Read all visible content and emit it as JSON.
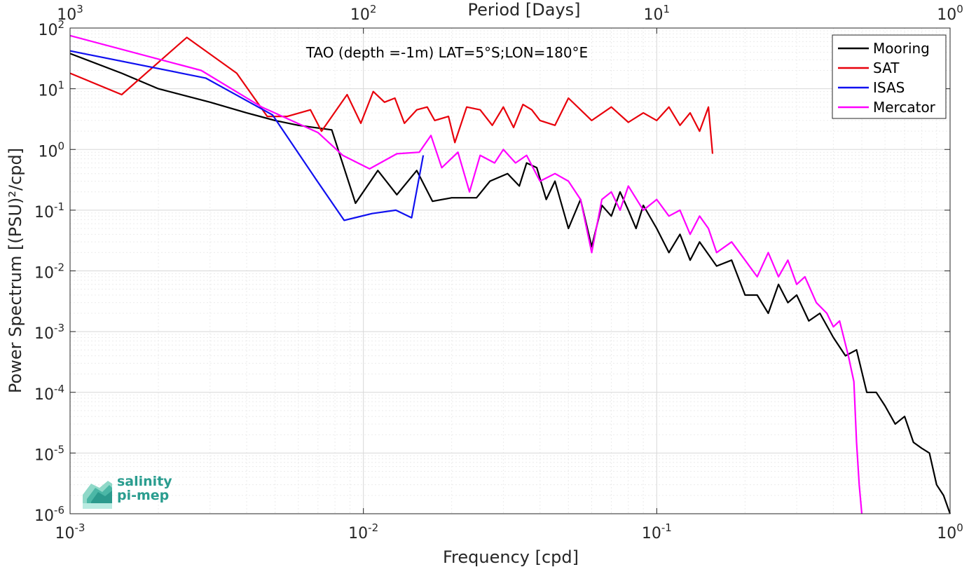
{
  "chart_data": {
    "type": "line",
    "title": "TAO (depth =-1m) LAT=5°S;LON=180°E",
    "xlabel": "Frequency [cpd]",
    "ylabel": "Power Spectrum [(PSU)²/cpd]",
    "top_xlabel": "Period [Days]",
    "xscale": "log",
    "yscale": "log",
    "xlim": [
      0.001,
      1
    ],
    "ylim": [
      1e-06,
      100
    ],
    "grid": true,
    "legend_placement": "top-right",
    "x_ticks": [
      {
        "value": 0.001,
        "base": "10",
        "exp": "-3"
      },
      {
        "value": 0.01,
        "base": "10",
        "exp": "-2"
      },
      {
        "value": 0.1,
        "base": "10",
        "exp": "-1"
      },
      {
        "value": 1,
        "base": "10",
        "exp": "0"
      }
    ],
    "top_ticks": [
      {
        "value": 0.001,
        "base": "10",
        "exp": "3"
      },
      {
        "value": 0.01,
        "base": "10",
        "exp": "2"
      },
      {
        "value": 0.1,
        "base": "10",
        "exp": "1"
      },
      {
        "value": 1,
        "base": "10",
        "exp": "0"
      }
    ],
    "y_ticks": [
      {
        "value": 100,
        "base": "10",
        "exp": "2"
      },
      {
        "value": 10,
        "base": "10",
        "exp": "1"
      },
      {
        "value": 1,
        "base": "10",
        "exp": "0"
      },
      {
        "value": 0.1,
        "base": "10",
        "exp": "-1"
      },
      {
        "value": 0.01,
        "base": "10",
        "exp": "-2"
      },
      {
        "value": 0.001,
        "base": "10",
        "exp": "-3"
      },
      {
        "value": 0.0001,
        "base": "10",
        "exp": "-4"
      },
      {
        "value": 1e-05,
        "base": "10",
        "exp": "-5"
      },
      {
        "value": 1e-06,
        "base": "10",
        "exp": "-6"
      }
    ],
    "series": [
      {
        "name": "Mooring",
        "color": "#000000",
        "points": [
          [
            0.001,
            38
          ],
          [
            0.0015,
            18
          ],
          [
            0.002,
            10
          ],
          [
            0.003,
            6
          ],
          [
            0.004,
            4
          ],
          [
            0.005,
            3
          ],
          [
            0.006,
            2.5
          ],
          [
            0.0078,
            2.1
          ],
          [
            0.0094,
            0.13
          ],
          [
            0.0112,
            0.45
          ],
          [
            0.013,
            0.18
          ],
          [
            0.0152,
            0.45
          ],
          [
            0.0172,
            0.14
          ],
          [
            0.02,
            0.16
          ],
          [
            0.0243,
            0.16
          ],
          [
            0.027,
            0.3
          ],
          [
            0.031,
            0.4
          ],
          [
            0.034,
            0.25
          ],
          [
            0.036,
            0.6
          ],
          [
            0.039,
            0.5
          ],
          [
            0.042,
            0.15
          ],
          [
            0.045,
            0.3
          ],
          [
            0.05,
            0.05
          ],
          [
            0.055,
            0.15
          ],
          [
            0.06,
            0.025
          ],
          [
            0.065,
            0.12
          ],
          [
            0.07,
            0.08
          ],
          [
            0.075,
            0.2
          ],
          [
            0.08,
            0.1
          ],
          [
            0.085,
            0.05
          ],
          [
            0.09,
            0.12
          ],
          [
            0.1,
            0.05
          ],
          [
            0.11,
            0.02
          ],
          [
            0.12,
            0.04
          ],
          [
            0.13,
            0.015
          ],
          [
            0.14,
            0.03
          ],
          [
            0.16,
            0.012
          ],
          [
            0.18,
            0.015
          ],
          [
            0.2,
            0.004
          ],
          [
            0.22,
            0.004
          ],
          [
            0.24,
            0.002
          ],
          [
            0.26,
            0.006
          ],
          [
            0.28,
            0.003
          ],
          [
            0.3,
            0.004
          ],
          [
            0.33,
            0.0015
          ],
          [
            0.36,
            0.002
          ],
          [
            0.4,
            0.0008
          ],
          [
            0.44,
            0.0004
          ],
          [
            0.48,
            0.0005
          ],
          [
            0.52,
            0.0001
          ],
          [
            0.56,
            0.0001
          ],
          [
            0.6,
            6e-05
          ],
          [
            0.65,
            3e-05
          ],
          [
            0.7,
            4e-05
          ],
          [
            0.75,
            1.5e-05
          ],
          [
            0.8,
            1.2e-05
          ],
          [
            0.85,
            1e-05
          ],
          [
            0.9,
            3e-06
          ],
          [
            0.95,
            2e-06
          ],
          [
            1.0,
            1e-06
          ]
        ]
      },
      {
        "name": "SAT",
        "color": "#e8000b",
        "points": [
          [
            0.001,
            18
          ],
          [
            0.0015,
            8
          ],
          [
            0.0025,
            70
          ],
          [
            0.0037,
            18
          ],
          [
            0.0047,
            3.5
          ],
          [
            0.0055,
            3.5
          ],
          [
            0.0066,
            4.5
          ],
          [
            0.0072,
            2
          ],
          [
            0.0088,
            8
          ],
          [
            0.0098,
            2.7
          ],
          [
            0.0108,
            9
          ],
          [
            0.0118,
            6
          ],
          [
            0.0128,
            7
          ],
          [
            0.0138,
            2.7
          ],
          [
            0.0152,
            4.5
          ],
          [
            0.0165,
            5
          ],
          [
            0.0175,
            3
          ],
          [
            0.0195,
            3.5
          ],
          [
            0.0205,
            1.3
          ],
          [
            0.0225,
            5
          ],
          [
            0.025,
            4.5
          ],
          [
            0.0275,
            2.5
          ],
          [
            0.03,
            5
          ],
          [
            0.0325,
            2.3
          ],
          [
            0.035,
            5.5
          ],
          [
            0.0375,
            4.5
          ],
          [
            0.04,
            3
          ],
          [
            0.045,
            2.5
          ],
          [
            0.05,
            7
          ],
          [
            0.06,
            3
          ],
          [
            0.07,
            5
          ],
          [
            0.08,
            2.8
          ],
          [
            0.09,
            4
          ],
          [
            0.1,
            3
          ],
          [
            0.11,
            5
          ],
          [
            0.12,
            2.5
          ],
          [
            0.13,
            4
          ],
          [
            0.14,
            2
          ],
          [
            0.15,
            5
          ],
          [
            0.155,
            0.85
          ]
        ]
      },
      {
        "name": "ISAS",
        "color": "#1010f0",
        "points": [
          [
            0.001,
            42
          ],
          [
            0.0029,
            15
          ],
          [
            0.0049,
            3.7
          ],
          [
            0.0069,
            0.32
          ],
          [
            0.0086,
            0.068
          ],
          [
            0.0107,
            0.088
          ],
          [
            0.0129,
            0.1
          ],
          [
            0.0146,
            0.075
          ],
          [
            0.016,
            0.8
          ]
        ]
      },
      {
        "name": "Mercator",
        "color": "#ff00ff",
        "points": [
          [
            0.001,
            75
          ],
          [
            0.0028,
            20
          ],
          [
            0.0045,
            5
          ],
          [
            0.007,
            1.9
          ],
          [
            0.0085,
            0.8
          ],
          [
            0.0105,
            0.48
          ],
          [
            0.013,
            0.85
          ],
          [
            0.0155,
            0.9
          ],
          [
            0.017,
            1.7
          ],
          [
            0.0185,
            0.5
          ],
          [
            0.021,
            0.9
          ],
          [
            0.023,
            0.2
          ],
          [
            0.025,
            0.8
          ],
          [
            0.028,
            0.6
          ],
          [
            0.03,
            1.0
          ],
          [
            0.033,
            0.6
          ],
          [
            0.036,
            0.8
          ],
          [
            0.04,
            0.3
          ],
          [
            0.045,
            0.4
          ],
          [
            0.05,
            0.3
          ],
          [
            0.055,
            0.15
          ],
          [
            0.06,
            0.02
          ],
          [
            0.065,
            0.15
          ],
          [
            0.07,
            0.2
          ],
          [
            0.075,
            0.1
          ],
          [
            0.08,
            0.25
          ],
          [
            0.09,
            0.1
          ],
          [
            0.1,
            0.15
          ],
          [
            0.11,
            0.08
          ],
          [
            0.12,
            0.1
          ],
          [
            0.13,
            0.04
          ],
          [
            0.14,
            0.08
          ],
          [
            0.15,
            0.05
          ],
          [
            0.16,
            0.02
          ],
          [
            0.18,
            0.03
          ],
          [
            0.2,
            0.015
          ],
          [
            0.22,
            0.008
          ],
          [
            0.24,
            0.02
          ],
          [
            0.26,
            0.008
          ],
          [
            0.28,
            0.015
          ],
          [
            0.3,
            0.006
          ],
          [
            0.32,
            0.008
          ],
          [
            0.35,
            0.003
          ],
          [
            0.38,
            0.002
          ],
          [
            0.4,
            0.0012
          ],
          [
            0.42,
            0.0015
          ],
          [
            0.45,
            0.0004
          ],
          [
            0.47,
            0.00015
          ],
          [
            0.48,
            1.5e-05
          ],
          [
            0.49,
            3e-06
          ],
          [
            0.5,
            1e-06
          ]
        ]
      }
    ]
  },
  "logo": {
    "line1": "salinity",
    "line2": "pi-mep"
  }
}
